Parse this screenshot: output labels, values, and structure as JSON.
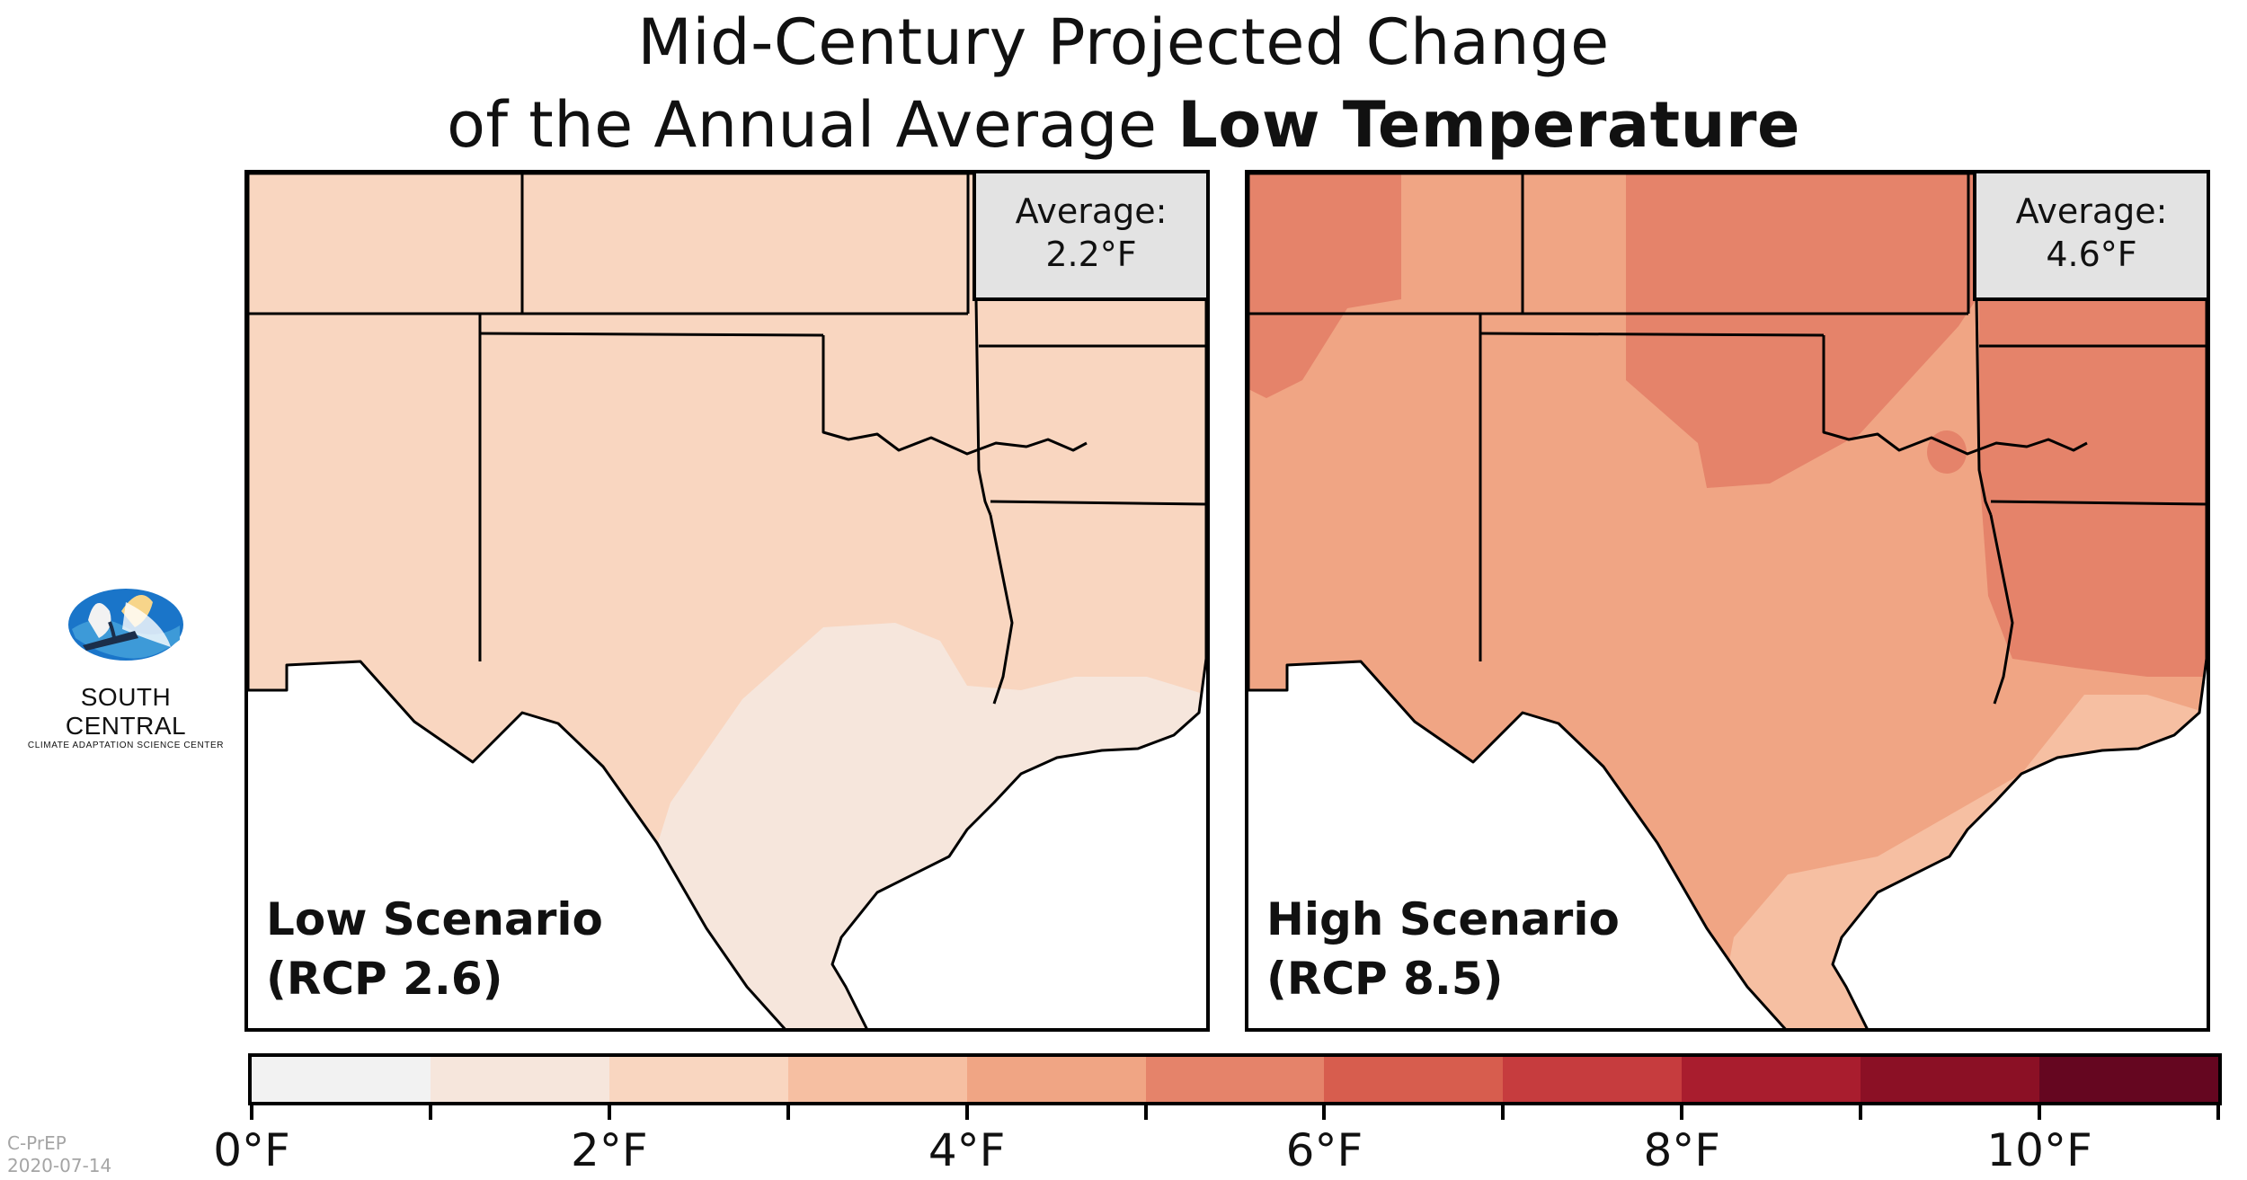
{
  "title": {
    "line1": "Mid-Century Projected Change",
    "line2_prefix": "of the Annual Average ",
    "line2_bold": "Low Temperature"
  },
  "panels": [
    {
      "average_label": "Average:",
      "average_value": "2.2°F",
      "scenario_name": "Low Scenario",
      "scenario_rcp": "(RCP 2.6)"
    },
    {
      "average_label": "Average:",
      "average_value": "4.6°F",
      "scenario_name": "High Scenario",
      "scenario_rcp": "(RCP 8.5)"
    }
  ],
  "colorbar": {
    "bins": [
      "#f2f2f2",
      "#f6e6dc",
      "#f9d6c0",
      "#f6bfa2",
      "#f0a584",
      "#e5836a",
      "#d75d4e",
      "#c63c3e",
      "#a91d2e",
      "#8b1025",
      "#650620"
    ],
    "tick_labels": [
      "0°F",
      "",
      "2°F",
      "",
      "4°F",
      "",
      "6°F",
      "",
      "8°F",
      "",
      "10°F",
      ""
    ]
  },
  "map_colors": {
    "low_base": "#f9d6c0",
    "low_light": "#f6e6dc",
    "high_base": "#f0a584",
    "high_dark": "#e5836a",
    "high_light": "#f6bfa2"
  },
  "logo": {
    "line1": "SOUTH CENTRAL",
    "line2": "CLIMATE ADAPTATION SCIENCE CENTER"
  },
  "stamp": {
    "source": "C-PrEP",
    "date": "2020-07-14"
  }
}
